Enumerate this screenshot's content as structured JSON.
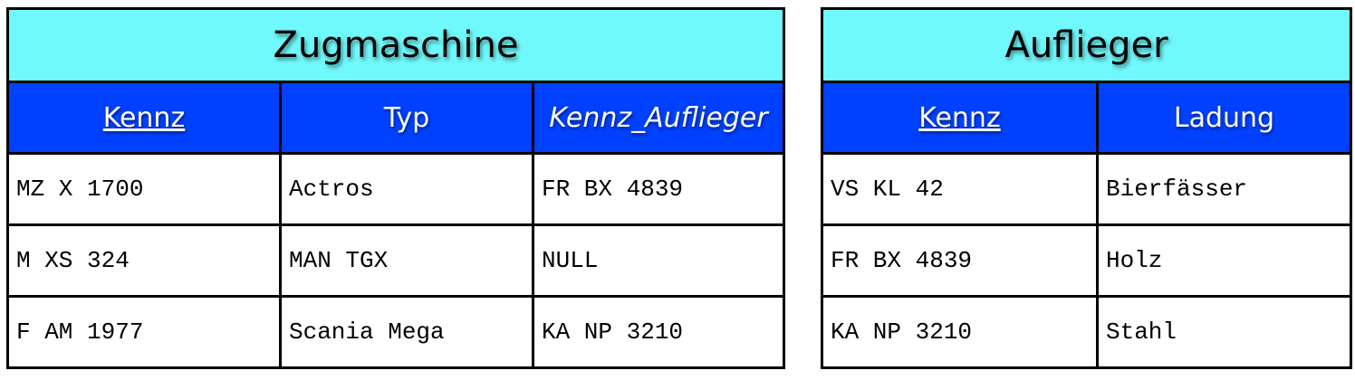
{
  "zugmaschine": {
    "title": "Zugmaschine",
    "columns": [
      "Kennz",
      "Typ",
      "Kennz_Auflieger"
    ],
    "rows": [
      [
        "MZ X 1700",
        "Actros",
        "FR BX 4839"
      ],
      [
        "M XS 324",
        "MAN TGX",
        "NULL"
      ],
      [
        "F AM 1977",
        "Scania Mega",
        "KA NP 3210"
      ]
    ]
  },
  "auflieger": {
    "title": "Auflieger",
    "columns": [
      "Kennz",
      "Ladung"
    ],
    "rows": [
      [
        "VS KL 42",
        "Bierfässer"
      ],
      [
        "FR BX 4839",
        "Holz"
      ],
      [
        "KA NP 3210",
        "Stahl"
      ]
    ]
  },
  "colors": {
    "title_bg": "#6ff9fc",
    "header_bg": "#0040ff"
  }
}
